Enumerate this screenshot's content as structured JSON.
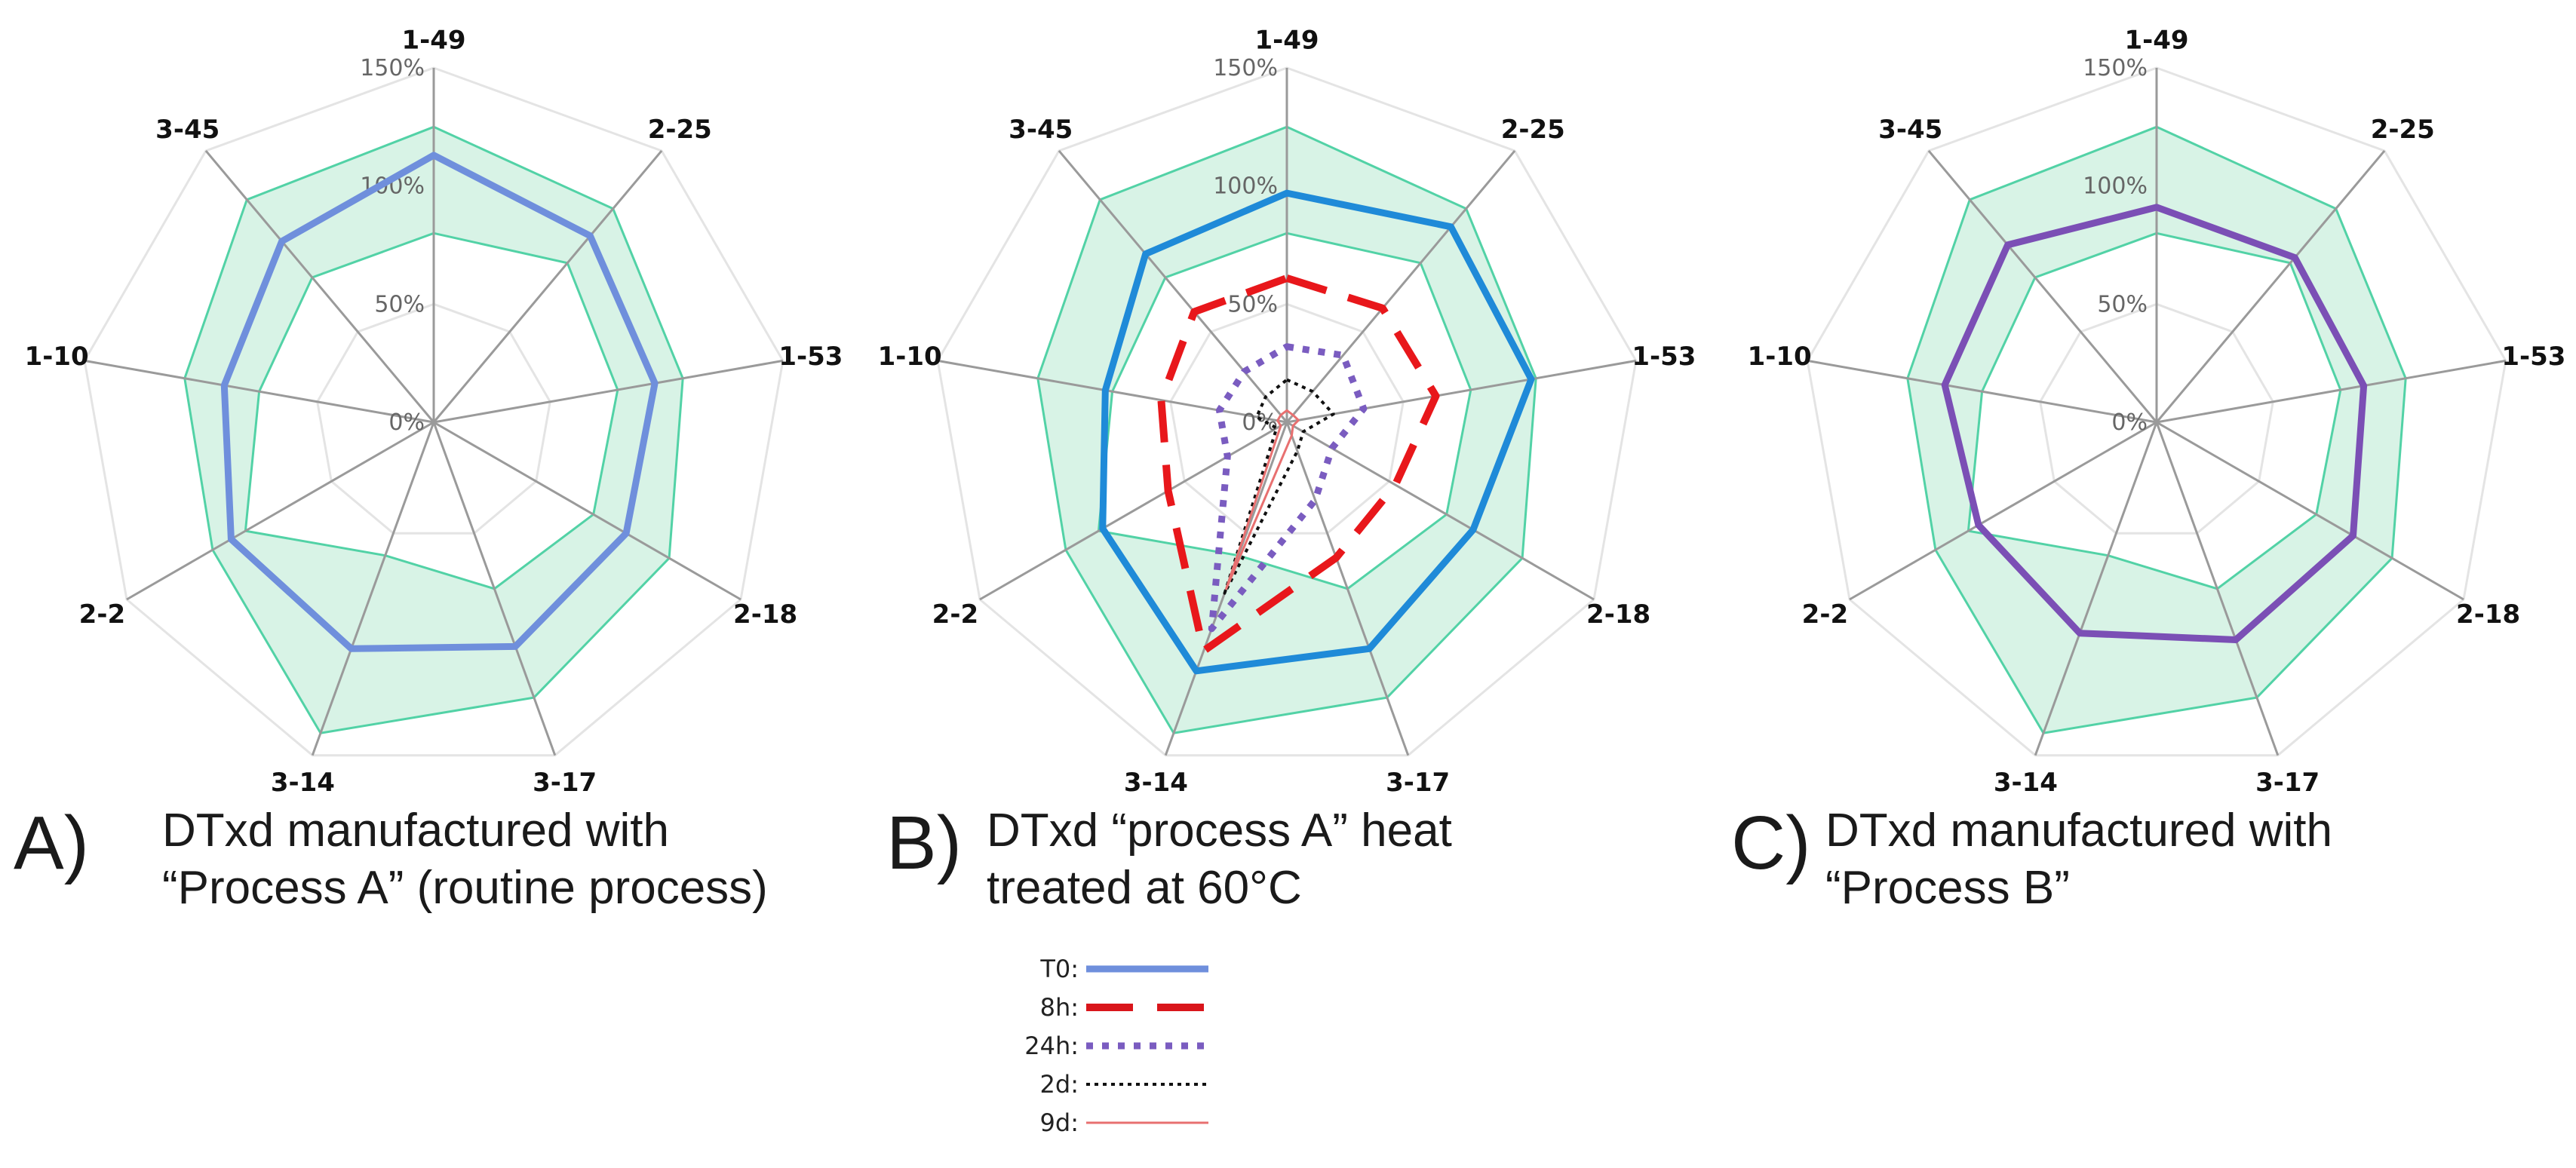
{
  "chart_data": [
    {
      "type": "radar",
      "panel": "A)",
      "caption": [
        "DTxd manufactured with",
        "“Process A” (routine process)"
      ],
      "categories": [
        "1-49",
        "2-25",
        "1-53",
        "2-18",
        "3-17",
        "3-14",
        "2-2",
        "1-10",
        "3-45"
      ],
      "rlim": [
        0,
        150
      ],
      "ticks": [
        "0%",
        "50%",
        "100%",
        "150%"
      ],
      "tick_values": [
        0,
        50,
        100,
        150
      ],
      "band": {
        "lower": [
          80,
          88,
          79,
          78,
          75,
          60,
          92,
          75,
          80
        ],
        "upper": [
          125,
          118,
          107,
          115,
          124,
          140,
          108,
          107,
          123
        ]
      },
      "series": [
        {
          "name": "T0",
          "values": [
            113,
            103,
            95,
            94,
            101,
            102,
            99,
            90,
            100
          ],
          "color": "#6f8fdc",
          "style": "solid"
        }
      ]
    },
    {
      "type": "radar",
      "panel": "B)",
      "caption": [
        "DTxd “process A” heat",
        "treated at 60°C"
      ],
      "categories": [
        "1-49",
        "2-25",
        "1-53",
        "2-18",
        "3-17",
        "3-14",
        "2-2",
        "1-10",
        "3-45"
      ],
      "rlim": [
        0,
        150
      ],
      "ticks": [
        "0%",
        "50%",
        "100%",
        "150%"
      ],
      "tick_values": [
        0,
        50,
        100,
        150
      ],
      "band": {
        "lower": [
          80,
          88,
          79,
          78,
          75,
          60,
          92,
          75,
          80
        ],
        "upper": [
          125,
          118,
          107,
          115,
          124,
          140,
          108,
          107,
          123
        ]
      },
      "series": [
        {
          "name": "T0",
          "values": [
            97,
            108,
            105,
            91,
            102,
            112,
            90,
            78,
            93
          ],
          "color": "#1f8ad8",
          "style": "solid"
        },
        {
          "name": "8h",
          "values": [
            61,
            63,
            64,
            53,
            61,
            103,
            58,
            54,
            61
          ],
          "color": "#e8171b",
          "style": "dash"
        },
        {
          "name": "24h",
          "values": [
            32,
            37,
            33,
            22,
            35,
            93,
            29,
            29,
            28
          ],
          "color": "#7a5cc0",
          "style": "dot"
        },
        {
          "name": "2d",
          "values": [
            18,
            17,
            20,
            8,
            13,
            77,
            5,
            13,
            14
          ],
          "color": "#111111",
          "style": "finedot"
        },
        {
          "name": "9d",
          "values": [
            5,
            4,
            5,
            3,
            6,
            75,
            3,
            4,
            4
          ],
          "color": "#e87070",
          "style": "thin"
        }
      ],
      "legend": [
        {
          "label": "T0:",
          "color": "#6f8fdc",
          "style": "solid"
        },
        {
          "label": "8h:",
          "color": "#d9151b",
          "style": "dash"
        },
        {
          "label": "24h:",
          "color": "#7a5cc0",
          "style": "dot"
        },
        {
          "label": "2d:",
          "color": "#111111",
          "style": "finedot"
        },
        {
          "label": "9d:",
          "color": "#e87070",
          "style": "thin"
        }
      ]
    },
    {
      "type": "radar",
      "panel": "C)",
      "caption": [
        "DTxd manufactured with",
        "“Process B”"
      ],
      "categories": [
        "1-49",
        "2-25",
        "1-53",
        "2-18",
        "3-17",
        "3-14",
        "2-2",
        "1-10",
        "3-45"
      ],
      "rlim": [
        0,
        150
      ],
      "ticks": [
        "0%",
        "50%",
        "100%",
        "150%"
      ],
      "tick_values": [
        0,
        50,
        100,
        150
      ],
      "band": {
        "lower": [
          80,
          88,
          79,
          78,
          75,
          60,
          92,
          75,
          80
        ],
        "upper": [
          125,
          118,
          107,
          115,
          124,
          140,
          108,
          107,
          123
        ]
      },
      "series": [
        {
          "name": "T0",
          "values": [
            91,
            91,
            89,
            96,
            98,
            95,
            87,
            91,
            98
          ],
          "color": "#7b4fb5",
          "style": "solid"
        }
      ]
    }
  ],
  "colors": {
    "band_fill": "#d8f3e6",
    "band_stroke": "#52d2a6",
    "grid": "#e4e4e4",
    "spoke": "#9a9a9a"
  }
}
